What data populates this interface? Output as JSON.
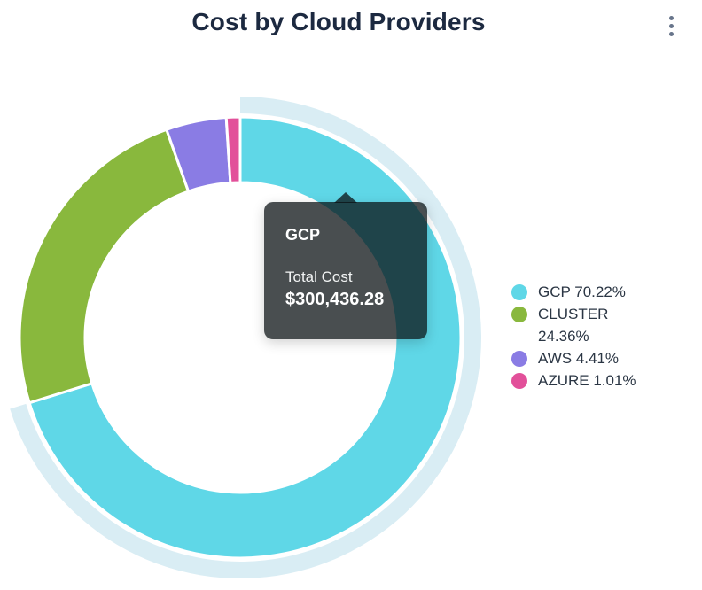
{
  "header": {
    "title": "Cost by Cloud Providers",
    "menu_icon": "kebab-vertical"
  },
  "chart_data": {
    "type": "pie",
    "subtype": "donut",
    "title": "Cost by Cloud Providers",
    "legend_position": "right",
    "series": [
      {
        "name": "GCP",
        "value": 70.22,
        "legend_label": "GCP 70.22%",
        "color": "#5fd7e7",
        "state": "hovered"
      },
      {
        "name": "CLUSTER",
        "value": 24.36,
        "legend_label": "CLUSTER 24.36%",
        "color": "#89b83d",
        "state": "normal"
      },
      {
        "name": "AWS",
        "value": 4.41,
        "legend_label": "AWS 4.41%",
        "color": "#8a7ce4",
        "state": "normal"
      },
      {
        "name": "AZURE",
        "value": 1.01,
        "legend_label": "AZURE 1.01%",
        "color": "#e2509a",
        "state": "normal"
      }
    ],
    "hover_ring_color": "#d9edf4",
    "tooltip": {
      "series_name": "GCP",
      "metric_label": "Total Cost",
      "value": "$300,436.28"
    }
  }
}
